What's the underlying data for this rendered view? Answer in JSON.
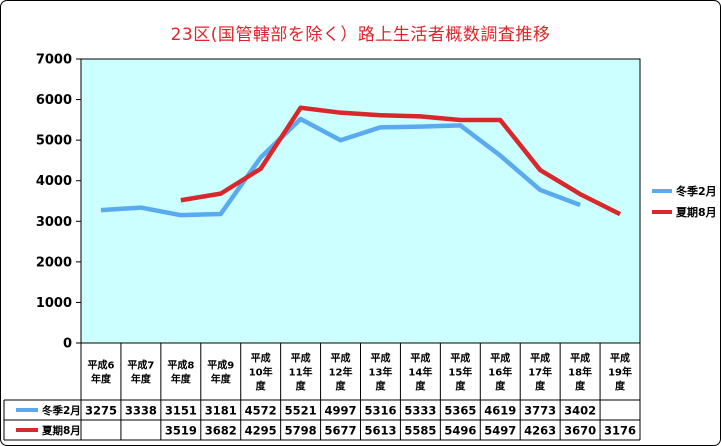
{
  "chart_data": {
    "type": "line",
    "title": "23区(国管轄部を除く）路上生活者概数調査推移",
    "categories": [
      [
        "平成6",
        "年度"
      ],
      [
        "平成7",
        "年度"
      ],
      [
        "平成8",
        "年度"
      ],
      [
        "平成9",
        "年度"
      ],
      [
        "平成",
        "10年",
        "度"
      ],
      [
        "平成",
        "11年",
        "度"
      ],
      [
        "平成",
        "12年",
        "度"
      ],
      [
        "平成",
        "13年",
        "度"
      ],
      [
        "平成",
        "14年",
        "度"
      ],
      [
        "平成",
        "15年",
        "度"
      ],
      [
        "平成",
        "16年",
        "度"
      ],
      [
        "平成",
        "17年",
        "度"
      ],
      [
        "平成",
        "18年",
        "度"
      ],
      [
        "平成",
        "19年",
        "度"
      ]
    ],
    "ylim": [
      0,
      7000
    ],
    "yticks": [
      0,
      1000,
      2000,
      3000,
      4000,
      5000,
      6000,
      7000
    ],
    "grid": false,
    "legend_position": "right",
    "plot_background": "#ccffff",
    "series": [
      {
        "name": "冬季2月",
        "color": "#5aaaf0",
        "values": [
          3275,
          3338,
          3151,
          3181,
          4572,
          5521,
          4997,
          5316,
          5333,
          5365,
          4619,
          3773,
          3402,
          null
        ]
      },
      {
        "name": "夏期8月",
        "color": "#d9282c",
        "values": [
          null,
          null,
          3519,
          3682,
          4295,
          5798,
          5677,
          5613,
          5585,
          5496,
          5497,
          4263,
          3670,
          3176
        ]
      }
    ]
  }
}
